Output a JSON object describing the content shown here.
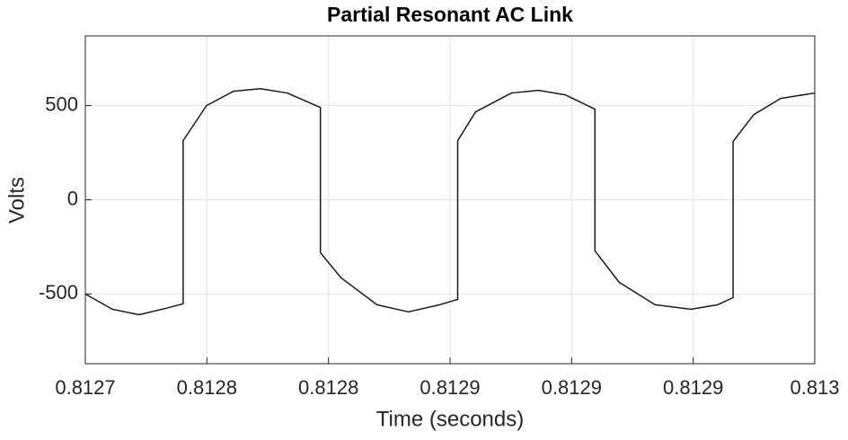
{
  "chart_data": {
    "type": "line",
    "title": "Partial Resonant AC Link",
    "x_label": "Time (seconds)",
    "y_label": "Volts",
    "x": [
      0.8127,
      0.81271107,
      0.81272214,
      0.81273321,
      0.81274022,
      0.81274022,
      0.81274982,
      0.81276089,
      0.81277196,
      0.81278303,
      0.81279668,
      0.81279668,
      0.81280517,
      0.81281993,
      0.81283284,
      0.81284576,
      0.81285314,
      0.81285314,
      0.81286052,
      0.81287528,
      0.81288635,
      0.81289742,
      0.81290959,
      0.81290959,
      0.81291956,
      0.81293432,
      0.81294908,
      0.81296015,
      0.81296642,
      0.81296642,
      0.81297491,
      0.81298598,
      0.813
    ],
    "series": [
      {
        "color": "#1a1a1a",
        "values": [
          -500,
          -581,
          -610,
          -576,
          -552,
          314,
          500,
          576,
          590,
          567,
          490,
          -281,
          -414,
          -557,
          -595,
          -557,
          -529,
          314,
          467,
          567,
          581,
          557,
          481,
          -271,
          -438,
          -557,
          -581,
          -557,
          -519,
          310,
          452,
          538,
          567
        ]
      }
    ],
    "xlim": [
      0.8127,
      0.813
    ],
    "xticks": [
      0.8127,
      {
        "value": 0.81275,
        "label": "0.8128"
      },
      {
        "value": 0.8128,
        "label": "0.8128"
      },
      {
        "value": 0.81285,
        "label": "0.8129"
      },
      {
        "value": 0.8129,
        "label": "0.8129"
      },
      {
        "value": 0.81295,
        "label": "0.8129"
      },
      0.813
    ],
    "ylim": [
      -870,
      870
    ],
    "yticks": [
      -500,
      0,
      500
    ],
    "grid": true
  }
}
